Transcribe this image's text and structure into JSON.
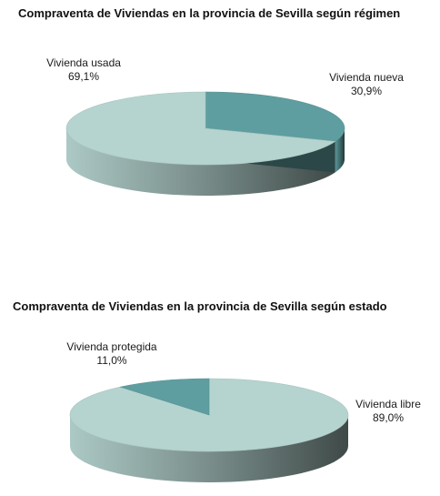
{
  "chart_data": [
    {
      "type": "pie",
      "title": "Compraventa de Viviendas en la provincia de Sevilla según régimen",
      "slices": [
        {
          "label": "Vivienda usada",
          "value": 69.1,
          "value_label": "69,1%",
          "color": "#b5d4cf"
        },
        {
          "label": "Vivienda nueva",
          "value": 30.9,
          "value_label": "30,9%",
          "color": "#5f9ea0"
        }
      ],
      "style": "3d-tilted"
    },
    {
      "type": "pie",
      "title": "Compraventa de Viviendas en la provincia de Sevilla según estado",
      "slices": [
        {
          "label": "Vivienda protegida",
          "value": 11.0,
          "value_label": "11,0%",
          "color": "#5f9ea0"
        },
        {
          "label": "Vivienda libre",
          "value": 89.0,
          "value_label": "89,0%",
          "color": "#b5d4cf"
        }
      ],
      "style": "3d-tilted"
    }
  ]
}
